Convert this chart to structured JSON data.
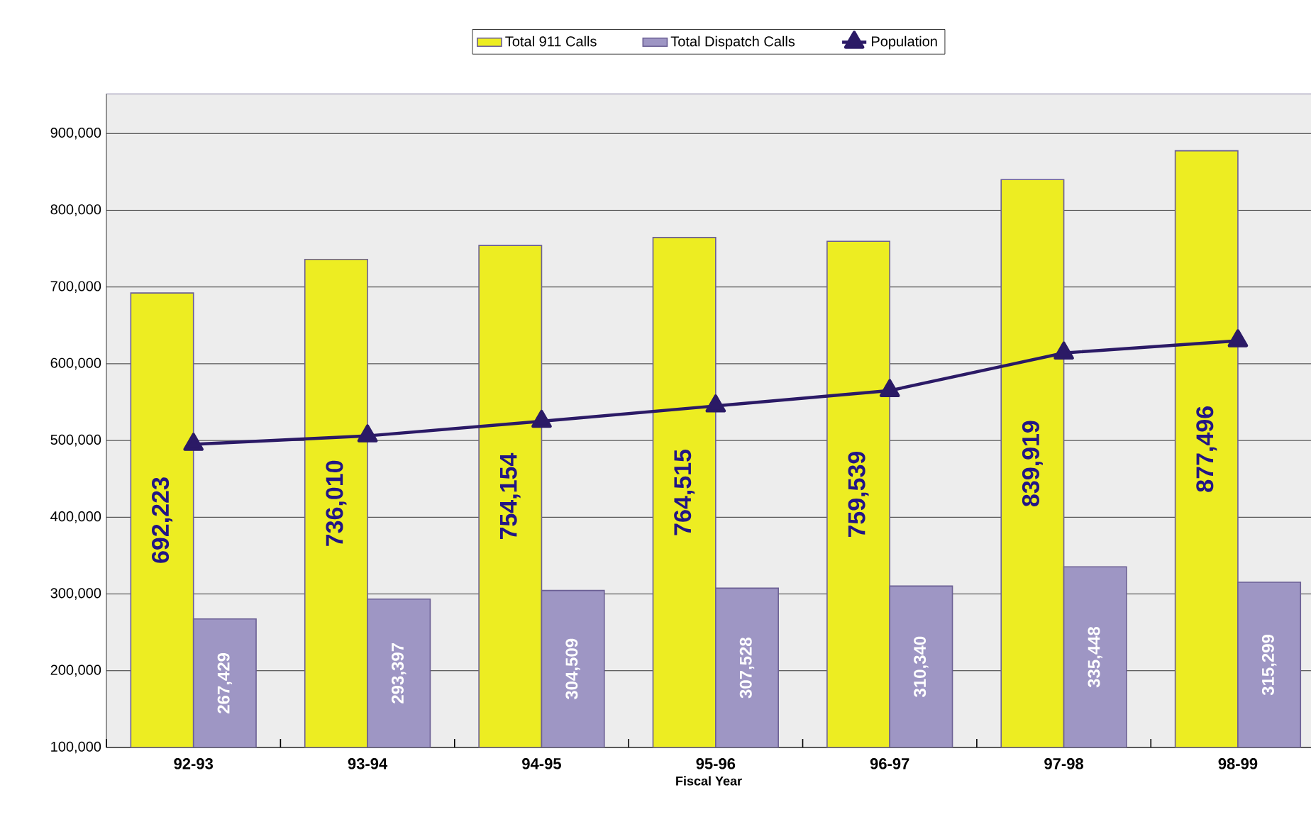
{
  "chart_data": {
    "type": "bar",
    "xlabel": "Fiscal Year",
    "categories": [
      "92-93",
      "93-94",
      "94-95",
      "95-96",
      "96-97",
      "97-98",
      "98-99"
    ],
    "series": [
      {
        "name": "Total 911 Calls",
        "color": "#eded22",
        "values": [
          692223,
          736010,
          754154,
          764515,
          759539,
          839919,
          877496
        ],
        "value_labels": [
          "692,223",
          "736,010",
          "754,154",
          "764,515",
          "759,539",
          "839,919",
          "877,496"
        ]
      },
      {
        "name": "Total Dispatch Calls",
        "color": "#9e96c4",
        "values": [
          267429,
          293397,
          304509,
          307528,
          310340,
          335448,
          315299
        ],
        "value_labels": [
          "267,429",
          "293,397",
          "304,509",
          "307,528",
          "310,340",
          "335,448",
          "315,299"
        ]
      },
      {
        "name": "Population",
        "type": "line",
        "color": "#2b1a66",
        "marker": "triangle",
        "values": [
          495000,
          506000,
          525000,
          545000,
          565000,
          614000,
          630000
        ]
      }
    ],
    "ylim": [
      100000,
      952000
    ],
    "yticks": [
      {
        "value": 100000,
        "label": "100,000"
      },
      {
        "value": 200000,
        "label": "200,000"
      },
      {
        "value": 300000,
        "label": "300,000"
      },
      {
        "value": 400000,
        "label": "400,000"
      },
      {
        "value": 500000,
        "label": "500,000"
      },
      {
        "value": 600000,
        "label": "600,000"
      },
      {
        "value": 700000,
        "label": "700,000"
      },
      {
        "value": 800000,
        "label": "800,000"
      },
      {
        "value": 900000,
        "label": "900,000"
      }
    ],
    "grid": "y",
    "legend": "top"
  }
}
